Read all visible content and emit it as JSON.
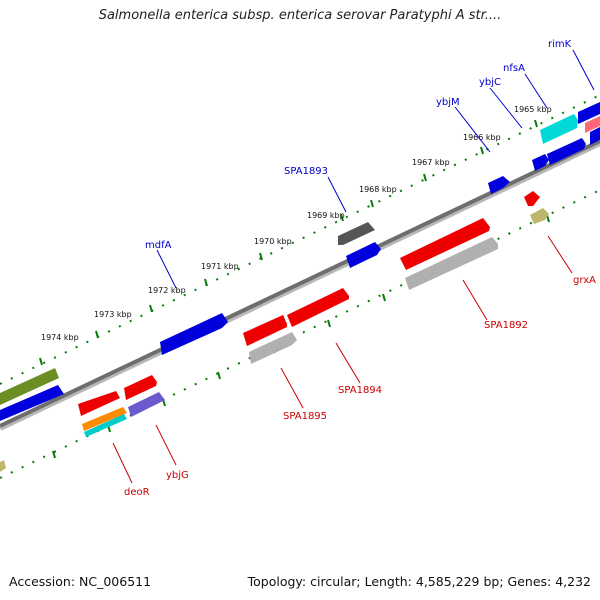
{
  "title": "Salmonella enterica subsp. enterica serovar Paratyphi A str....",
  "footer": {
    "accession": "Accession: NC_006511",
    "topology": "Topology: circular; Length: 4,585,229 bp; Genes: 4,232"
  },
  "colors": {
    "backbone": "#7a7a7a",
    "track": "#0a7a0a",
    "forward_label": "#0000cc",
    "reverse_label": "#cc0000"
  },
  "ticks": [
    {
      "label": "1965 kbp"
    },
    {
      "label": "1966 kbp"
    },
    {
      "label": "1967 kbp"
    },
    {
      "label": "1968 kbp"
    },
    {
      "label": "1969 kbp"
    },
    {
      "label": "1970 kbp"
    },
    {
      "label": "1971 kbp"
    },
    {
      "label": "1972 kbp"
    },
    {
      "label": "1973 kbp"
    },
    {
      "label": "1974 kbp"
    }
  ],
  "gene_labels": [
    {
      "text": "rimK",
      "strand": "forward"
    },
    {
      "text": "nfsA",
      "strand": "forward"
    },
    {
      "text": "ybjC",
      "strand": "forward"
    },
    {
      "text": "ybjM",
      "strand": "forward"
    },
    {
      "text": "SPA1893",
      "strand": "forward"
    },
    {
      "text": "mdfA",
      "strand": "forward"
    },
    {
      "text": "grxA",
      "strand": "reverse"
    },
    {
      "text": "SPA1892",
      "strand": "reverse"
    },
    {
      "text": "SPA1894",
      "strand": "reverse"
    },
    {
      "text": "SPA1895",
      "strand": "reverse"
    },
    {
      "text": "ybjG",
      "strand": "reverse"
    },
    {
      "text": "deoR",
      "strand": "reverse"
    }
  ],
  "features": [
    {
      "name": "mdfA",
      "strand": "forward",
      "color": "#0000dd"
    },
    {
      "name": "SPA1893",
      "strand": "forward",
      "color": "#0000dd"
    },
    {
      "name": "ybjM",
      "strand": "forward",
      "color": "#0000dd"
    },
    {
      "name": "ybjC",
      "strand": "forward",
      "color": "#0000dd"
    },
    {
      "name": "nfsA",
      "strand": "forward",
      "color": "#0000dd"
    },
    {
      "name": "rimK",
      "strand": "forward",
      "color": "#0000dd"
    },
    {
      "name": "SPA1892",
      "strand": "reverse",
      "color": "#ee0000"
    },
    {
      "name": "SPA1894",
      "strand": "reverse",
      "color": "#ee0000"
    },
    {
      "name": "SPA1895",
      "strand": "reverse",
      "color": "#ee0000"
    },
    {
      "name": "grxA",
      "strand": "reverse",
      "color": "#ee0000"
    },
    {
      "name": "ybjG",
      "strand": "reverse",
      "color": "#ee0000"
    },
    {
      "name": "deoR",
      "strand": "reverse",
      "color": "#ee0000"
    }
  ]
}
